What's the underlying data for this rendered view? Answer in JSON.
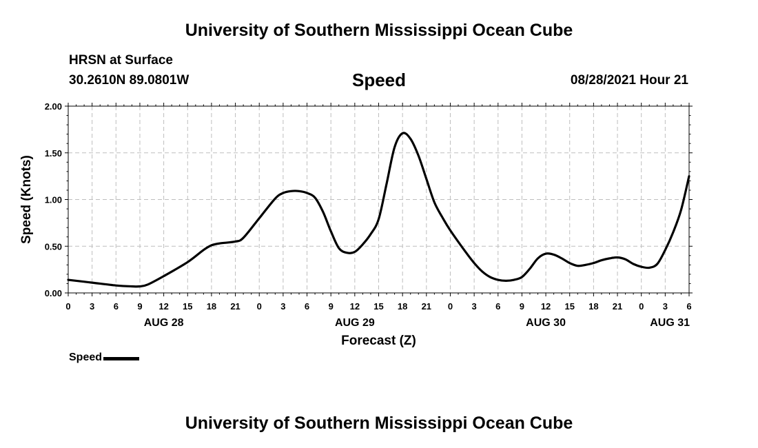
{
  "header": {
    "title": "University of Southern Mississippi Ocean Cube",
    "station": "HRSN at Surface",
    "coords": "30.2610N  89.0801W",
    "chart_title": "Speed",
    "datetime": "08/28/2021 Hour 21"
  },
  "footer": {
    "title": "University of Southern Mississippi Ocean Cube"
  },
  "legend": {
    "label": "Speed",
    "color": "#000000"
  },
  "chart_data": {
    "type": "line",
    "title": "Speed",
    "xlabel": "Forecast (Z)",
    "ylabel": "Speed (Knots)",
    "xlim": [
      0,
      78
    ],
    "ylim": [
      0,
      2
    ],
    "x_units": "hours since AUG 28 00Z",
    "x_ticks": [
      0,
      3,
      6,
      9,
      12,
      15,
      18,
      21,
      24,
      27,
      30,
      33,
      36,
      39,
      42,
      45,
      48,
      51,
      54,
      57,
      60,
      63,
      66,
      69,
      72,
      75,
      78
    ],
    "x_tick_labels": [
      "0",
      "3",
      "6",
      "9",
      "12",
      "15",
      "18",
      "21",
      "0",
      "3",
      "6",
      "9",
      "12",
      "15",
      "18",
      "21",
      "0",
      "3",
      "6",
      "9",
      "12",
      "15",
      "18",
      "21",
      "0",
      "3",
      "6"
    ],
    "y_ticks": [
      0,
      0.5,
      1.0,
      1.5,
      2.0
    ],
    "y_tick_labels": [
      "0.00",
      "0.50",
      "1.00",
      "1.50",
      "2.00"
    ],
    "day_labels": [
      {
        "label": "AUG 28",
        "x": 12
      },
      {
        "label": "AUG 29",
        "x": 36
      },
      {
        "label": "AUG 30",
        "x": 60
      },
      {
        "label": "AUG 31",
        "x": 78
      }
    ],
    "grid": true,
    "series": [
      {
        "name": "Speed",
        "color": "#000000",
        "x": [
          0,
          3,
          6,
          8,
          9,
          10,
          12,
          15,
          17,
          18,
          19,
          21,
          22,
          24,
          26,
          27,
          28,
          29,
          30,
          31,
          32,
          33,
          34,
          35,
          36,
          37,
          38,
          39,
          40,
          41,
          42,
          43,
          44,
          45,
          46,
          47,
          48,
          50,
          51,
          52,
          53,
          54,
          55,
          56,
          57,
          58,
          59,
          60,
          61,
          62,
          63,
          64,
          65,
          66,
          67,
          68,
          69,
          70,
          71,
          72,
          73,
          74,
          75,
          76,
          77,
          78
        ],
        "y": [
          0.14,
          0.11,
          0.08,
          0.07,
          0.07,
          0.09,
          0.18,
          0.33,
          0.46,
          0.51,
          0.53,
          0.55,
          0.59,
          0.8,
          1.01,
          1.07,
          1.09,
          1.09,
          1.07,
          1.02,
          0.87,
          0.66,
          0.48,
          0.43,
          0.44,
          0.52,
          0.63,
          0.79,
          1.17,
          1.56,
          1.71,
          1.65,
          1.47,
          1.22,
          0.97,
          0.81,
          0.67,
          0.43,
          0.32,
          0.23,
          0.17,
          0.14,
          0.13,
          0.14,
          0.17,
          0.26,
          0.37,
          0.42,
          0.41,
          0.37,
          0.32,
          0.29,
          0.3,
          0.32,
          0.35,
          0.37,
          0.38,
          0.36,
          0.31,
          0.28,
          0.27,
          0.31,
          0.46,
          0.65,
          0.89,
          1.25
        ]
      }
    ]
  }
}
